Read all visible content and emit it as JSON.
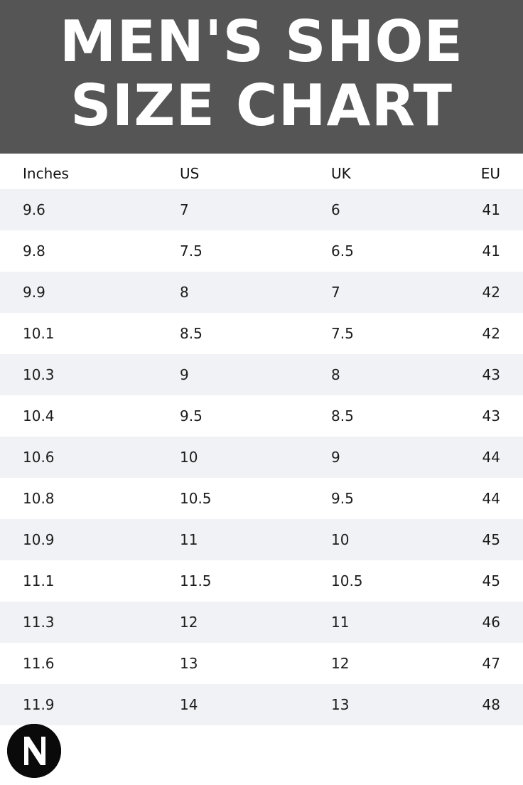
{
  "title": {
    "line1": "MEN'S SHOE",
    "line2": "SIZE CHART"
  },
  "table": {
    "headers": {
      "inches": "Inches",
      "us": "US",
      "uk": "UK",
      "eu": "EU"
    },
    "rows": [
      {
        "inches": "9.6",
        "us": "7",
        "uk": "6",
        "eu": "41"
      },
      {
        "inches": "9.8",
        "us": "7.5",
        "uk": "6.5",
        "eu": "41"
      },
      {
        "inches": "9.9",
        "us": "8",
        "uk": "7",
        "eu": "42"
      },
      {
        "inches": "10.1",
        "us": "8.5",
        "uk": "7.5",
        "eu": "42"
      },
      {
        "inches": "10.3",
        "us": "9",
        "uk": "8",
        "eu": "43"
      },
      {
        "inches": "10.4",
        "us": "9.5",
        "uk": "8.5",
        "eu": "43"
      },
      {
        "inches": "10.6",
        "us": "10",
        "uk": "9",
        "eu": "44"
      },
      {
        "inches": "10.8",
        "us": "10.5",
        "uk": "9.5",
        "eu": "44"
      },
      {
        "inches": "10.9",
        "us": "11",
        "uk": "10",
        "eu": "45"
      },
      {
        "inches": "11.1",
        "us": "11.5",
        "uk": "10.5",
        "eu": "45"
      },
      {
        "inches": "11.3",
        "us": "12",
        "uk": "11",
        "eu": "46"
      },
      {
        "inches": "11.6",
        "us": "13",
        "uk": "12",
        "eu": "47"
      },
      {
        "inches": "11.9",
        "us": "14",
        "uk": "13",
        "eu": "48"
      }
    ]
  },
  "logo": {
    "icon": "brand-n-logo-icon"
  },
  "colors": {
    "banner": "#555555",
    "row_shade": "#f1f2f5",
    "text": "#1c1c1c",
    "logo": "#0a0a0a"
  }
}
